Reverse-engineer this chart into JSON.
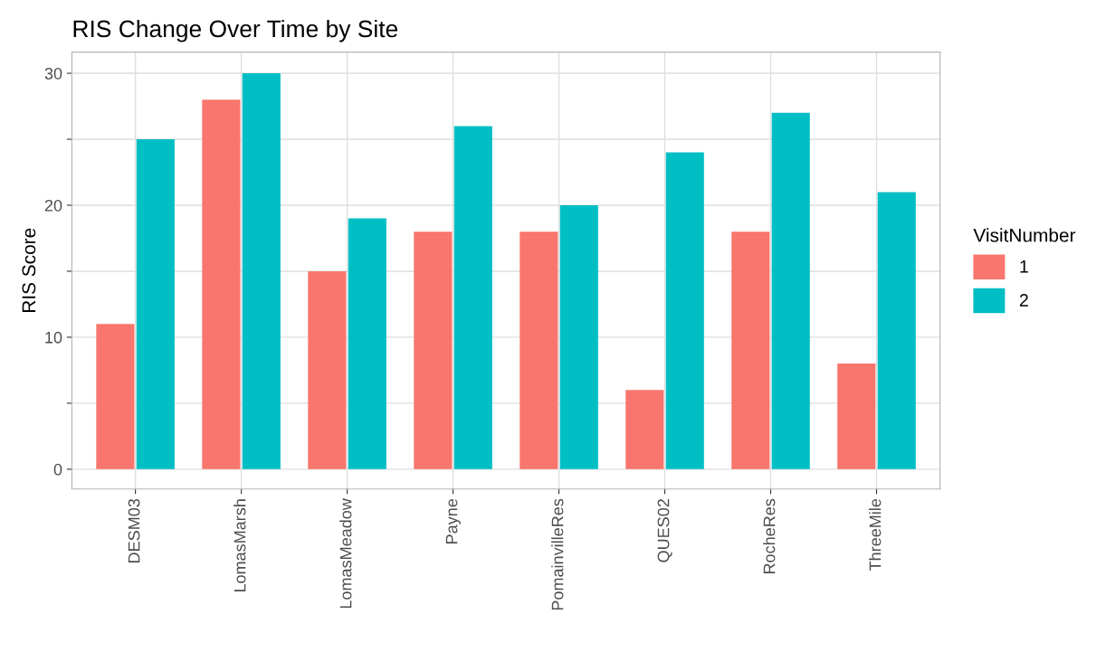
{
  "chart_data": {
    "type": "bar",
    "title": "RIS Change Over Time by Site",
    "ylabel": "RIS Score",
    "legend_title": "VisitNumber",
    "categories": [
      "DESM03",
      "LomasMarsh",
      "LomasMeadow",
      "Payne",
      "PomainvilleRes",
      "QUES02",
      "RocheRes",
      "ThreeMile"
    ],
    "series": [
      {
        "name": "1",
        "color": "#f8766d",
        "values": [
          11,
          28,
          15,
          18,
          18,
          6,
          18,
          8
        ]
      },
      {
        "name": "2",
        "color": "#00bfc4",
        "values": [
          25,
          30,
          19,
          26,
          20,
          24,
          27,
          21
        ]
      }
    ],
    "ylim": [
      -1.5,
      31.6
    ],
    "yticks": [
      0,
      {
        "value": 5,
        "label": null
      },
      10,
      {
        "value": 15,
        "label": null
      },
      20,
      {
        "value": 25,
        "label": null
      },
      30
    ],
    "grid": true,
    "legend": "right"
  }
}
